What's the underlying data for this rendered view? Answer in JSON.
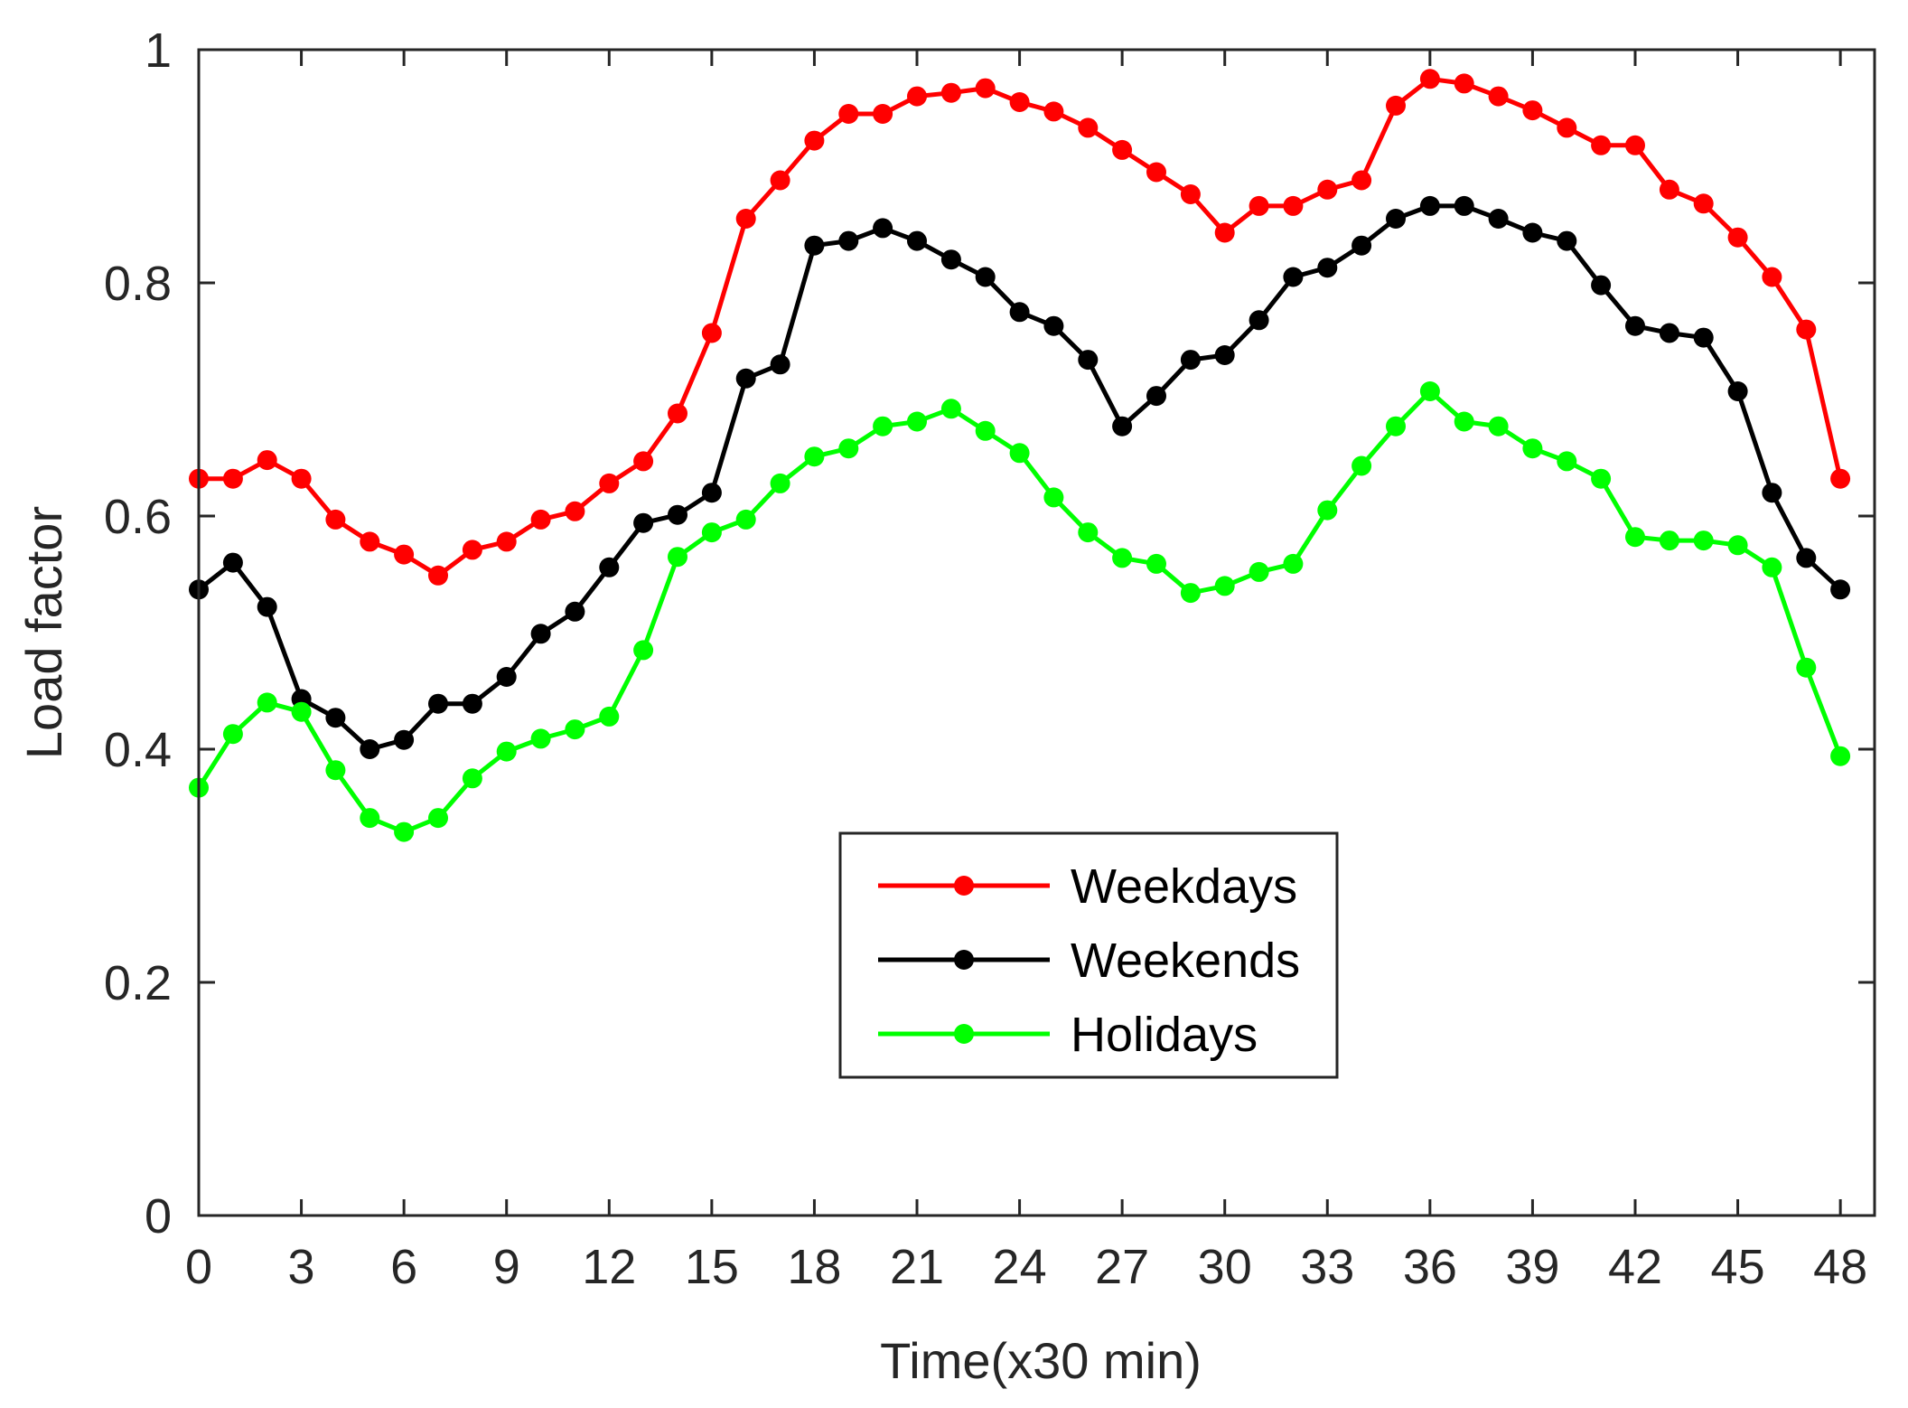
{
  "chart_data": {
    "type": "line",
    "title": "",
    "xlabel": "Time(x30 min)",
    "ylabel": "Load factor",
    "xlim": [
      0,
      49
    ],
    "ylim": [
      0,
      1
    ],
    "xticks": [
      0,
      3,
      6,
      9,
      12,
      15,
      18,
      21,
      24,
      27,
      30,
      33,
      36,
      39,
      42,
      45,
      48
    ],
    "xtick_labels": [
      "0",
      "3",
      "6",
      "9",
      "12",
      "15",
      "18",
      "21",
      "24",
      "27",
      "30",
      "33",
      "36",
      "39",
      "42",
      "45",
      "48"
    ],
    "yticks": [
      0,
      0.2,
      0.4,
      0.6,
      0.8,
      1
    ],
    "ytick_labels": [
      "0",
      "0.2",
      "0.4",
      "0.6",
      "0.8",
      "1"
    ],
    "grid": false,
    "legend_position": "lower-center",
    "x": [
      0,
      1,
      2,
      3,
      4,
      5,
      6,
      7,
      8,
      9,
      10,
      11,
      12,
      13,
      14,
      15,
      16,
      17,
      18,
      19,
      20,
      21,
      22,
      23,
      24,
      25,
      26,
      27,
      28,
      29,
      30,
      31,
      32,
      33,
      34,
      35,
      36,
      37,
      38,
      39,
      40,
      41,
      42,
      43,
      44,
      45,
      46,
      47,
      48
    ],
    "series": [
      {
        "name": "Weekdays",
        "color": "#ff0000",
        "values": [
          0.632,
          0.632,
          0.648,
          0.632,
          0.597,
          0.578,
          0.567,
          0.549,
          0.571,
          0.578,
          0.597,
          0.604,
          0.628,
          0.647,
          0.688,
          0.757,
          0.855,
          0.888,
          0.922,
          0.945,
          0.945,
          0.96,
          0.963,
          0.967,
          0.955,
          0.947,
          0.933,
          0.914,
          0.895,
          0.876,
          0.843,
          0.866,
          0.866,
          0.88,
          0.888,
          0.952,
          0.975,
          0.971,
          0.96,
          0.948,
          0.933,
          0.918,
          0.918,
          0.88,
          0.868,
          0.839,
          0.805,
          0.76,
          0.632
        ]
      },
      {
        "name": "Weekends",
        "color": "#000000",
        "values": [
          0.537,
          0.56,
          0.522,
          0.443,
          0.427,
          0.4,
          0.408,
          0.439,
          0.439,
          0.462,
          0.499,
          0.518,
          0.556,
          0.594,
          0.601,
          0.62,
          0.718,
          0.73,
          0.832,
          0.836,
          0.847,
          0.836,
          0.82,
          0.805,
          0.775,
          0.763,
          0.734,
          0.677,
          0.703,
          0.734,
          0.738,
          0.768,
          0.805,
          0.813,
          0.832,
          0.855,
          0.866,
          0.866,
          0.855,
          0.843,
          0.836,
          0.798,
          0.763,
          0.757,
          0.753,
          0.707,
          0.62,
          0.564,
          0.537
        ]
      },
      {
        "name": "Holidays",
        "color": "#00ff00",
        "values": [
          0.367,
          0.413,
          0.44,
          0.432,
          0.382,
          0.341,
          0.329,
          0.341,
          0.375,
          0.398,
          0.409,
          0.417,
          0.428,
          0.485,
          0.565,
          0.586,
          0.597,
          0.628,
          0.651,
          0.658,
          0.677,
          0.681,
          0.692,
          0.673,
          0.654,
          0.616,
          0.586,
          0.564,
          0.559,
          0.534,
          0.54,
          0.552,
          0.559,
          0.605,
          0.643,
          0.677,
          0.707,
          0.681,
          0.677,
          0.658,
          0.647,
          0.632,
          0.582,
          0.579,
          0.579,
          0.575,
          0.556,
          0.47,
          0.394
        ]
      }
    ]
  }
}
